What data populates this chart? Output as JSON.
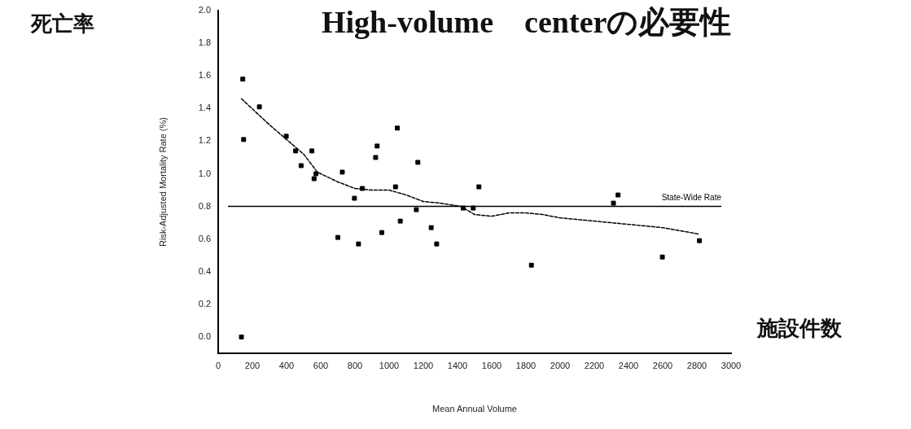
{
  "chart_data": {
    "type": "scatter",
    "title": "High-volume　centerの必要性",
    "xlabel": "Mean Annual Volume",
    "ylabel": "Risk-Adjusted Mortality Rate (%)",
    "annotations": [
      "死亡率",
      "施設件数"
    ],
    "xlim": [
      0,
      3000
    ],
    "xticks": [
      0,
      200,
      400,
      600,
      800,
      1000,
      1200,
      1400,
      1600,
      1800,
      2000,
      2200,
      2400,
      2600,
      2800,
      3000
    ],
    "ylim": [
      -0.1,
      2.0
    ],
    "yticks": [
      {
        "value": 0,
        "label": "0.0"
      },
      0.2,
      0.4,
      0.6,
      0.8,
      {
        "value": 1,
        "label": "1.0"
      },
      1.2,
      1.4,
      1.6,
      1.8,
      {
        "value": 2,
        "label": "2.0"
      }
    ],
    "grid": false,
    "legend": false,
    "ref_lines": [
      {
        "axis": "y",
        "value": 0.8,
        "label": "State-Wide Rate",
        "color": "#000000",
        "line_style": "solid"
      }
    ],
    "series": [
      {
        "type": "scatter",
        "color": "#000000",
        "marker": "square",
        "x": [
          144,
          149,
          136,
          241,
          398,
          453,
          485,
          548,
          561,
          572,
          700,
          726,
          797,
          821,
          843,
          921,
          930,
          957,
          1037,
          1048,
          1065,
          1159,
          1168,
          1246,
          1278,
          1433,
          1492,
          1525,
          1832,
          2312,
          2339,
          2598,
          2815
        ],
        "values": [
          1.58,
          1.21,
          0.0,
          1.41,
          1.23,
          1.14,
          1.05,
          1.14,
          0.97,
          1.0,
          0.61,
          1.01,
          0.85,
          0.57,
          0.91,
          1.1,
          1.17,
          0.64,
          0.92,
          1.28,
          0.71,
          0.78,
          1.07,
          0.67,
          0.57,
          0.79,
          0.79,
          0.92,
          0.44,
          0.82,
          0.87,
          0.49,
          0.59
        ]
      },
      {
        "type": "line",
        "color": "#000000",
        "line_style": "dashed",
        "marker": "none",
        "x": [
          136,
          300,
          500,
          580,
          700,
          800,
          900,
          1000,
          1100,
          1200,
          1300,
          1420,
          1500,
          1600,
          1700,
          1800,
          1900,
          2000,
          2200,
          2400,
          2600,
          2815
        ],
        "values": [
          1.46,
          1.3,
          1.12,
          1.01,
          0.95,
          0.91,
          0.9,
          0.9,
          0.87,
          0.83,
          0.82,
          0.8,
          0.75,
          0.74,
          0.76,
          0.76,
          0.75,
          0.73,
          0.71,
          0.69,
          0.67,
          0.63
        ]
      }
    ]
  }
}
